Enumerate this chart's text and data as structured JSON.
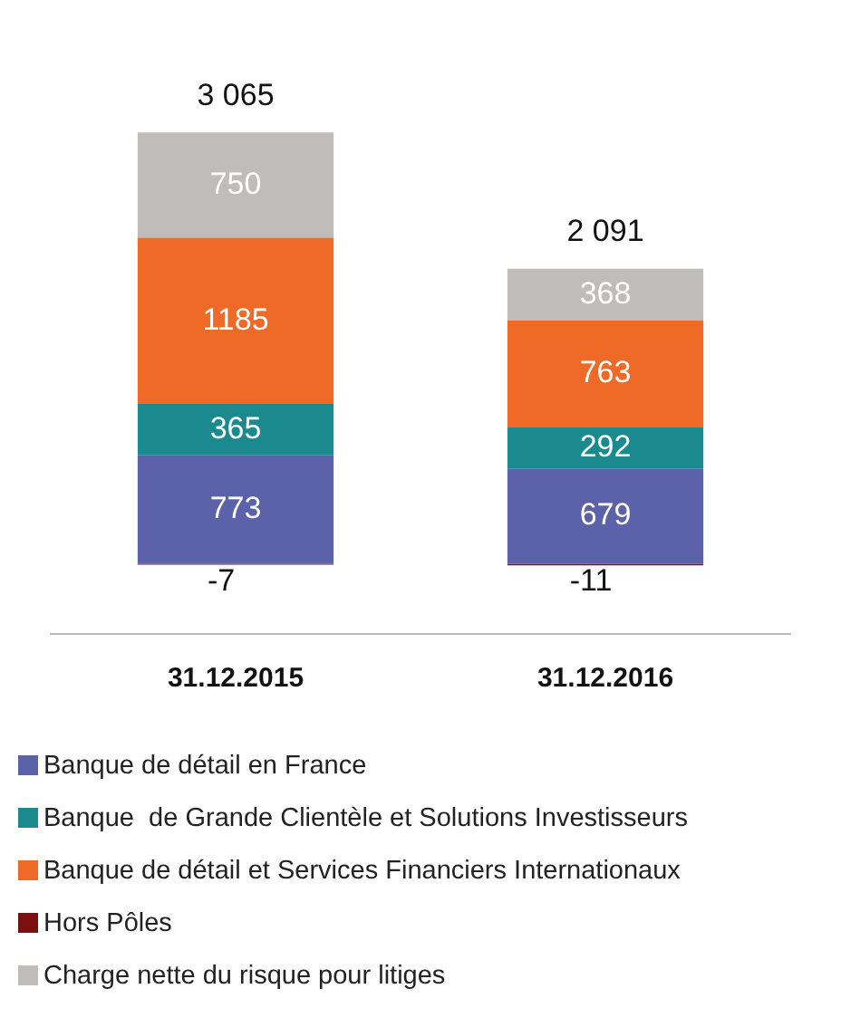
{
  "chart_data": {
    "type": "bar",
    "stacked": true,
    "data_labels": true,
    "legend": "bottom",
    "grid": false,
    "tick_labels": "x",
    "categories": [
      "31.12.2015",
      "31.12.2016"
    ],
    "series": [
      {
        "name": "Banque de détail en France",
        "color": "#5b62a9",
        "values": [
          773,
          679
        ]
      },
      {
        "name": "Banque  de Grande Clientèle et Solutions Investisseurs",
        "color": "#1a8a8f",
        "values": [
          365,
          292
        ]
      },
      {
        "name": "Banque de détail et Services Financiers Internationaux",
        "color": "#ee6a26",
        "values": [
          1185,
          763
        ]
      },
      {
        "name": "Hors Pôles",
        "color": "#7a1010",
        "values": [
          -7,
          -11
        ]
      },
      {
        "name": "Charge nette du risque pour litiges",
        "color": "#c0bcbb",
        "values": [
          750,
          368
        ]
      }
    ],
    "totals": [
      "3 065",
      "2 091"
    ]
  }
}
